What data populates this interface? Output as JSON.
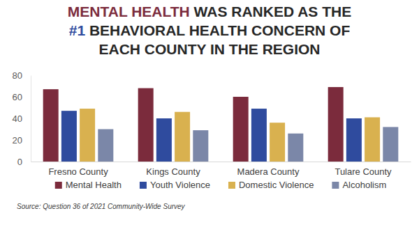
{
  "chart_data": {
    "type": "bar",
    "title": [
      "MENTAL HEALTH WAS RANKED AS THE",
      "#1 BEHAVIORAL HEALTH CONCERN OF",
      "EACH COUNTY IN THE REGION"
    ],
    "source": "Source: Question 36 of 2021 Community-Wide Survey",
    "categories": [
      "Fresno County",
      "Kings County",
      "Madera County",
      "Tulare County"
    ],
    "series": [
      {
        "name": "Mental Health",
        "color": "#7b2b3c",
        "values": [
          67,
          68,
          60,
          69
        ]
      },
      {
        "name": "Youth Violence",
        "color": "#2f4b9e",
        "values": [
          47,
          40,
          49,
          40
        ]
      },
      {
        "name": "Domestic Violence",
        "color": "#d9b14f",
        "values": [
          49,
          46,
          36,
          41
        ]
      },
      {
        "name": "Alcoholism",
        "color": "#7b87a8",
        "values": [
          30,
          29,
          26,
          32
        ]
      }
    ],
    "ylim": [
      0,
      80
    ],
    "yticks": [
      0,
      20,
      40,
      60,
      80
    ],
    "grid": false,
    "legend": "bottom"
  }
}
